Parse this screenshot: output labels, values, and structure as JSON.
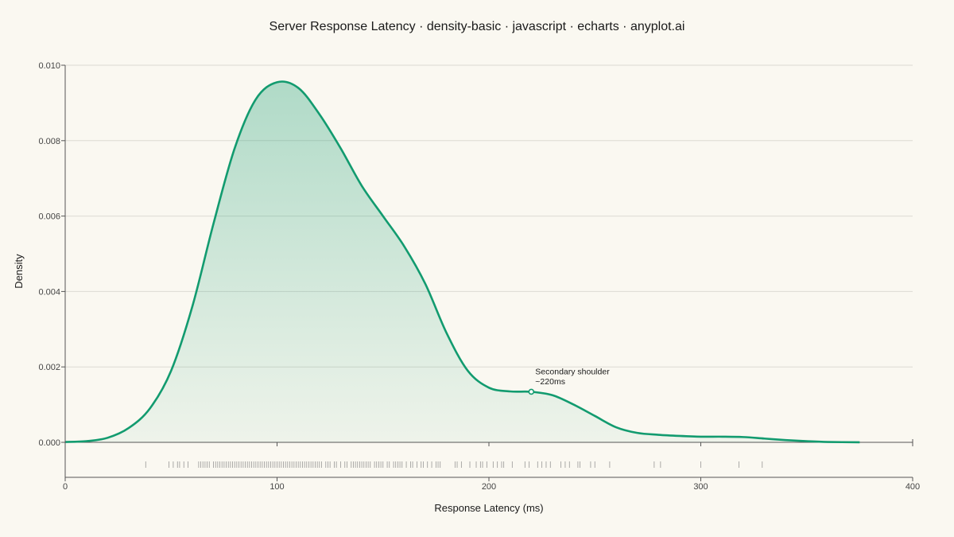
{
  "chart_data": {
    "type": "area",
    "title": "Server Response Latency · density-basic · javascript · echarts · anyplot.ai",
    "xlabel": "Response Latency (ms)",
    "ylabel": "Density",
    "xlim": [
      0,
      400
    ],
    "ylim": [
      0,
      0.01
    ],
    "x_ticks": [
      0,
      100,
      200,
      300,
      400
    ],
    "y_ticks": [
      0.0,
      0.002,
      0.004,
      0.006,
      0.008,
      0.01
    ],
    "y_tick_labels": [
      "0.000",
      "0.002",
      "0.004",
      "0.006",
      "0.008",
      "0.010"
    ],
    "grid": true,
    "legend": "none",
    "series": [
      {
        "color": "#129b6f",
        "points": [
          [
            0,
            1e-05
          ],
          [
            10,
            3e-05
          ],
          [
            20,
            0.00012
          ],
          [
            30,
            0.00038
          ],
          [
            40,
            0.0009
          ],
          [
            50,
            0.0019
          ],
          [
            60,
            0.0036
          ],
          [
            70,
            0.0058
          ],
          [
            80,
            0.0078
          ],
          [
            90,
            0.0091
          ],
          [
            100,
            0.00955
          ],
          [
            110,
            0.0094
          ],
          [
            120,
            0.0087
          ],
          [
            130,
            0.0078
          ],
          [
            140,
            0.0068
          ],
          [
            150,
            0.006
          ],
          [
            160,
            0.0052
          ],
          [
            170,
            0.0042
          ],
          [
            180,
            0.0029
          ],
          [
            190,
            0.0019
          ],
          [
            200,
            0.00145
          ],
          [
            210,
            0.00135
          ],
          [
            220,
            0.00134
          ],
          [
            230,
            0.00125
          ],
          [
            240,
            0.001
          ],
          [
            250,
            0.0007
          ],
          [
            260,
            0.0004
          ],
          [
            270,
            0.00025
          ],
          [
            280,
            0.0002
          ],
          [
            290,
            0.00017
          ],
          [
            300,
            0.00015
          ],
          [
            310,
            0.00015
          ],
          [
            320,
            0.00014
          ],
          [
            330,
            0.0001
          ],
          [
            340,
            6e-05
          ],
          [
            350,
            3e-05
          ],
          [
            360,
            1e-05
          ],
          [
            375,
            2e-06
          ]
        ]
      }
    ],
    "rug": [
      38,
      49,
      51,
      53,
      54,
      56,
      58,
      63,
      64,
      65,
      66,
      67,
      68,
      70,
      71,
      72,
      73,
      74,
      75,
      76,
      77,
      78,
      79,
      80,
      81,
      82,
      83,
      84,
      85,
      86,
      87,
      88,
      89,
      90,
      91,
      92,
      93,
      94,
      95,
      96,
      97,
      98,
      99,
      100,
      101,
      102,
      103,
      104,
      105,
      106,
      107,
      108,
      109,
      110,
      111,
      112,
      113,
      114,
      115,
      116,
      117,
      118,
      119,
      120,
      121,
      123,
      124,
      125,
      127,
      128,
      130,
      132,
      133,
      135,
      136,
      137,
      138,
      139,
      140,
      141,
      142,
      143,
      144,
      146,
      147,
      148,
      149,
      150,
      152,
      153,
      155,
      156,
      157,
      158,
      159,
      161,
      163,
      164,
      166,
      168,
      169,
      171,
      173,
      175,
      176,
      177,
      184,
      185,
      187,
      191,
      194,
      196,
      197,
      199,
      202,
      204,
      206,
      207,
      211,
      217,
      219,
      223,
      225,
      227,
      229,
      234,
      236,
      238,
      242,
      243,
      248,
      250,
      257,
      278,
      281,
      300,
      318,
      329
    ],
    "annotations": [
      {
        "x": 220,
        "y": 0.00134,
        "text": [
          "Secondary shoulder",
          "~220ms"
        ]
      }
    ]
  }
}
